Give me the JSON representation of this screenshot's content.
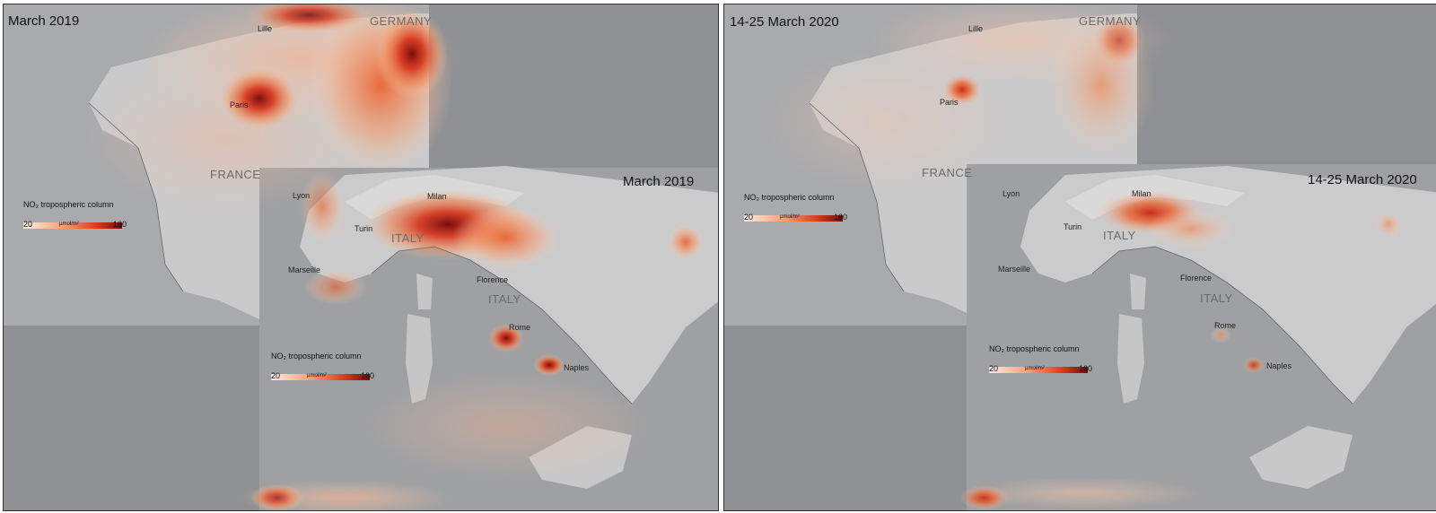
{
  "panels": [
    {
      "id": "march-2019",
      "period_top_left": "March 2019",
      "period_italy": "March 2019",
      "countries": {
        "france": "FRANCE",
        "italy_north": "ITALY",
        "italy_south": "ITALY",
        "germany": "GERMANY"
      },
      "cities": [
        "Lille",
        "Paris",
        "Lyon",
        "Turin",
        "Milan",
        "Marseille",
        "Florence",
        "Rome",
        "Naples"
      ],
      "legend": {
        "title": "NO₂ tropospheric column",
        "min": "20",
        "max": "160",
        "unit": "µmol/m²"
      },
      "intensity": "high"
    },
    {
      "id": "march-2020",
      "period_top_left": "14-25 March 2020",
      "period_italy": "14-25 March 2020",
      "countries": {
        "france": "FRANCE",
        "italy_north": "ITALY",
        "italy_south": "ITALY",
        "germany": "GERMANY"
      },
      "cities": [
        "Lille",
        "Paris",
        "Lyon",
        "Turin",
        "Milan",
        "Marseille",
        "Florence",
        "Rome",
        "Naples"
      ],
      "legend": {
        "title": "NO₂ tropospheric column",
        "min": "20",
        "max": "160",
        "unit": "µmol/m²"
      },
      "intensity": "low"
    }
  ],
  "colors": {
    "ocean": "#8f9093",
    "land": "#c9c9c9",
    "no2_low": "#f7d6c4",
    "no2_mid": "#ee6a32",
    "no2_high": "#7e0d0b"
  }
}
